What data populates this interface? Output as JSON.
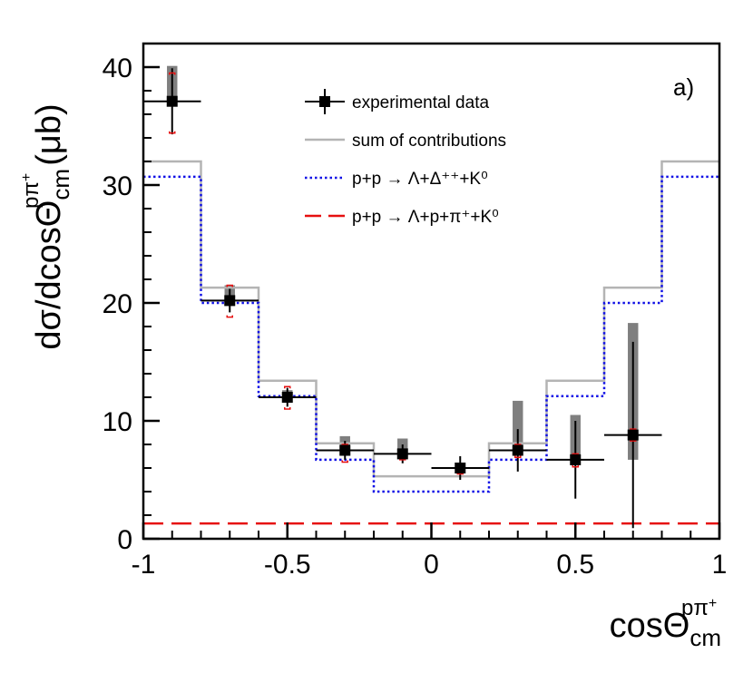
{
  "chart_data": {
    "type": "line",
    "xlabel": {
      "base": "cosΘ",
      "sup": "pπ",
      "sup2": "+",
      "sub": "cm"
    },
    "ylabel": {
      "base": "dσ/dcosΘ",
      "sup": "pπ",
      "sup2": "+",
      "sub": "cm",
      "unit": "(μb)"
    },
    "panel_label": "a)",
    "xlim": [
      -1,
      1
    ],
    "ylim": [
      0,
      42
    ],
    "x_ticks": [
      -1,
      -0.5,
      0,
      0.5,
      1
    ],
    "x_tick_labels": [
      "-1",
      "-0.5",
      "0",
      "0.5",
      "1"
    ],
    "y_ticks": [
      0,
      10,
      20,
      30,
      40
    ],
    "y_tick_labels": [
      "0",
      "10",
      "20",
      "30",
      "40"
    ],
    "bin_edges": [
      -1,
      -0.8,
      -0.6,
      -0.4,
      -0.2,
      0,
      0.2,
      0.4,
      0.6,
      0.8,
      1
    ],
    "series": [
      {
        "name": "experimental data",
        "kind": "points",
        "color": "#000000",
        "x": [
          -0.9,
          -0.7,
          -0.5,
          -0.3,
          -0.1,
          0.1,
          0.3,
          0.5,
          0.7
        ],
        "y": [
          37.1,
          20.2,
          12.0,
          7.5,
          7.2,
          6.0,
          7.5,
          6.7,
          8.8
        ],
        "stat_err_low": [
          37.1,
          20.2,
          12.0,
          7.5,
          7.2,
          6.0,
          7.5,
          6.7,
          8.8
        ],
        "stat_err": [
          2.8,
          1.0,
          0.8,
          0.8,
          0.8,
          1.0,
          1.8,
          3.3,
          7.9
        ],
        "sys_low": [
          36.7,
          20.0,
          11.8,
          7.2,
          6.9,
          5.7,
          7.2,
          6.4,
          6.7
        ],
        "sys_high": [
          40.1,
          21.5,
          12.6,
          8.7,
          8.5,
          6.3,
          11.7,
          10.5,
          18.3
        ],
        "model_err_low": [
          34.4,
          18.8,
          11.0,
          6.5,
          6.7,
          5.5,
          6.9,
          6.1,
          8.3
        ],
        "model_err_high": [
          39.5,
          21.5,
          12.9,
          8.0,
          7.5,
          6.2,
          8.0,
          7.2,
          9.3
        ]
      },
      {
        "name": "sum of contributions",
        "kind": "histogram",
        "color": "#b4b4b4",
        "values": [
          32.0,
          21.3,
          13.4,
          8.1,
          5.3,
          5.3,
          8.1,
          13.4,
          21.3,
          32.0
        ]
      },
      {
        "name": "p+p → Λ+Δ⁺⁺+K⁰",
        "kind": "histogram",
        "color": "#1010e6",
        "values": [
          30.7,
          20.0,
          12.1,
          6.7,
          4.0,
          4.0,
          6.7,
          12.1,
          20.0,
          30.7
        ]
      },
      {
        "name": "p+p → Λ+p+π⁺+K⁰",
        "kind": "histogram",
        "color": "#e61010",
        "values": [
          1.3,
          1.3,
          1.3,
          1.3,
          1.3,
          1.3,
          1.3,
          1.3,
          1.3,
          1.3
        ]
      }
    ],
    "legend": {
      "placement": "top-center",
      "entries": [
        {
          "label": "experimental data",
          "style": "marker"
        },
        {
          "label": "sum of contributions",
          "style": "solid"
        },
        {
          "label": "p+p → Λ+Δ⁺⁺+K⁰",
          "style": "dotted"
        },
        {
          "label": "p+p → Λ+p+π⁺+K⁰",
          "style": "dashed"
        }
      ]
    },
    "grid": false
  }
}
